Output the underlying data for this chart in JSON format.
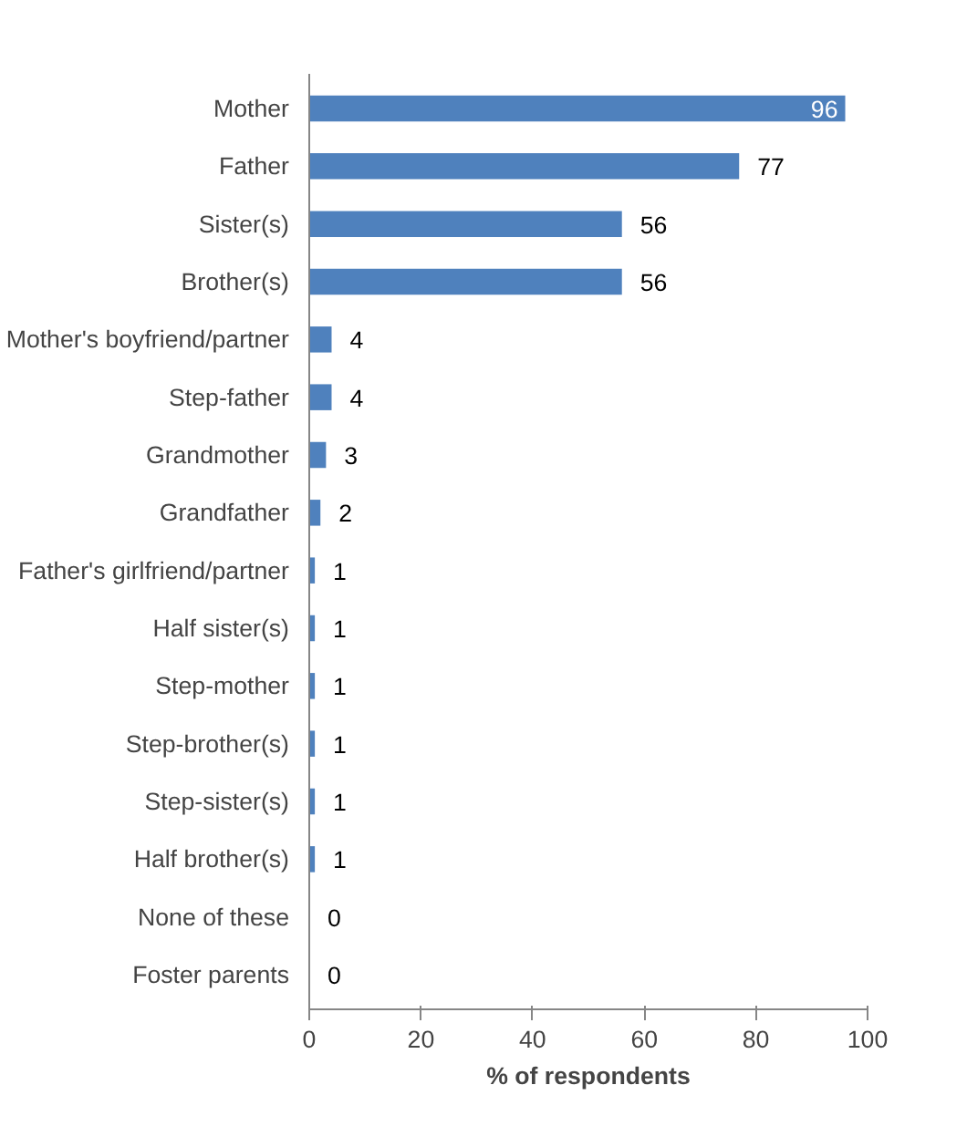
{
  "chart_data": {
    "type": "bar",
    "orientation": "horizontal",
    "xlabel": "% of respondents",
    "categories": [
      "Mother",
      "Father",
      "Sister(s)",
      "Brother(s)",
      "Mother's boyfriend/partner",
      "Step-father",
      "Grandmother",
      "Grandfather",
      "Father's girlfriend/partner",
      "Half sister(s)",
      "Step-mother",
      "Step-brother(s)",
      "Step-sister(s)",
      "Half brother(s)",
      "None of these",
      "Foster parents"
    ],
    "values": [
      96,
      77,
      56,
      56,
      4,
      4,
      3,
      2,
      1,
      1,
      1,
      1,
      1,
      1,
      0,
      0
    ],
    "color": "#4f81bd",
    "xlim": [
      0,
      100
    ],
    "xticks": [
      0,
      20,
      40,
      60,
      80,
      100
    ],
    "grid": false,
    "data_labels": true
  }
}
